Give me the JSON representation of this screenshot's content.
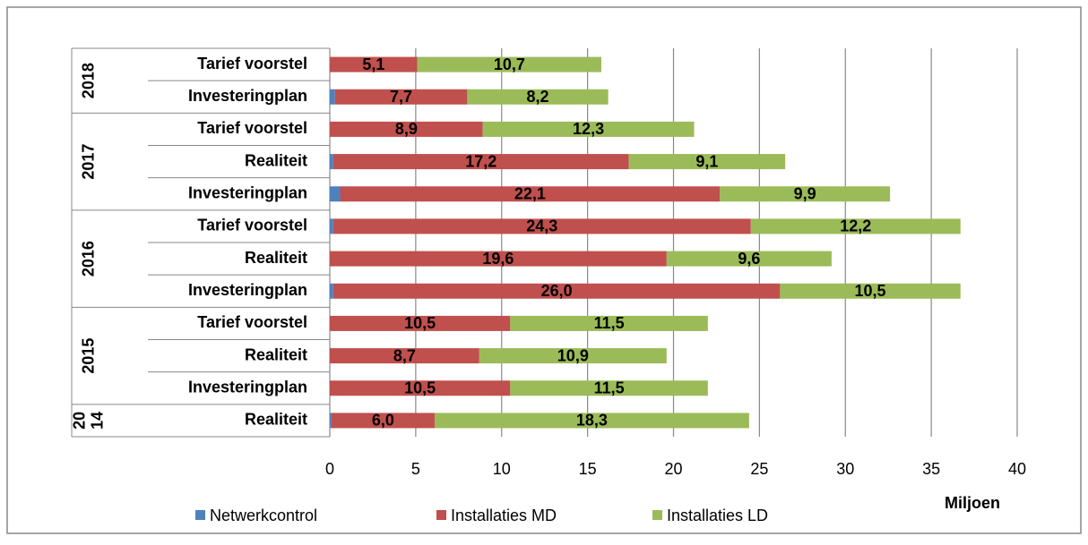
{
  "chart_data": {
    "type": "stacked-barh",
    "groups": [
      {
        "label": [
          "2018"
        ],
        "categories": [
          "Tarief voorstel",
          "Investeringplan"
        ]
      },
      {
        "label": [
          "2017"
        ],
        "categories": [
          "Tarief voorstel",
          "Realiteit",
          "Investeringplan"
        ]
      },
      {
        "label": [
          "2016"
        ],
        "categories": [
          "Tarief voorstel",
          "Realiteit",
          "Investeringplan"
        ]
      },
      {
        "label": [
          "2015"
        ],
        "categories": [
          "Tarief voorstel",
          "Realiteit",
          "Investeringplan"
        ]
      },
      {
        "label": [
          "20",
          "14"
        ],
        "categories": [
          "Realiteit"
        ]
      }
    ],
    "series": [
      {
        "name": "Netwerkcontrol",
        "color": "#4f81bd",
        "values": [
          0,
          0.3,
          0,
          0.2,
          0.6,
          0.2,
          0,
          0.2,
          0,
          0,
          0,
          0.1
        ]
      },
      {
        "name": "Installaties MD",
        "color": "#c0504d",
        "values": [
          5.1,
          7.7,
          8.9,
          17.2,
          22.1,
          24.3,
          19.6,
          26.0,
          10.5,
          8.7,
          10.5,
          6.0
        ],
        "value_labels": [
          "5,1",
          "7,7",
          "8,9",
          "17,2",
          "22,1",
          "24,3",
          "19,6",
          "26,0",
          "10,5",
          "8,7",
          "10,5",
          "6,0"
        ]
      },
      {
        "name": "Installaties LD",
        "color": "#9bbb59",
        "values": [
          10.7,
          8.2,
          12.3,
          9.1,
          9.9,
          12.2,
          9.6,
          10.5,
          11.5,
          10.9,
          11.5,
          18.3
        ],
        "value_labels": [
          "10,7",
          "8,2",
          "12,3",
          "9,1",
          "9,9",
          "12,2",
          "9,6",
          "10,5",
          "11,5",
          "10,9",
          "11,5",
          "18,3"
        ]
      }
    ],
    "xlim": [
      0,
      40
    ],
    "xticks": [
      0,
      5,
      10,
      15,
      20,
      25,
      30,
      35,
      40
    ],
    "xlabel": "Miljoen",
    "grid": true,
    "legend": "bottom"
  }
}
